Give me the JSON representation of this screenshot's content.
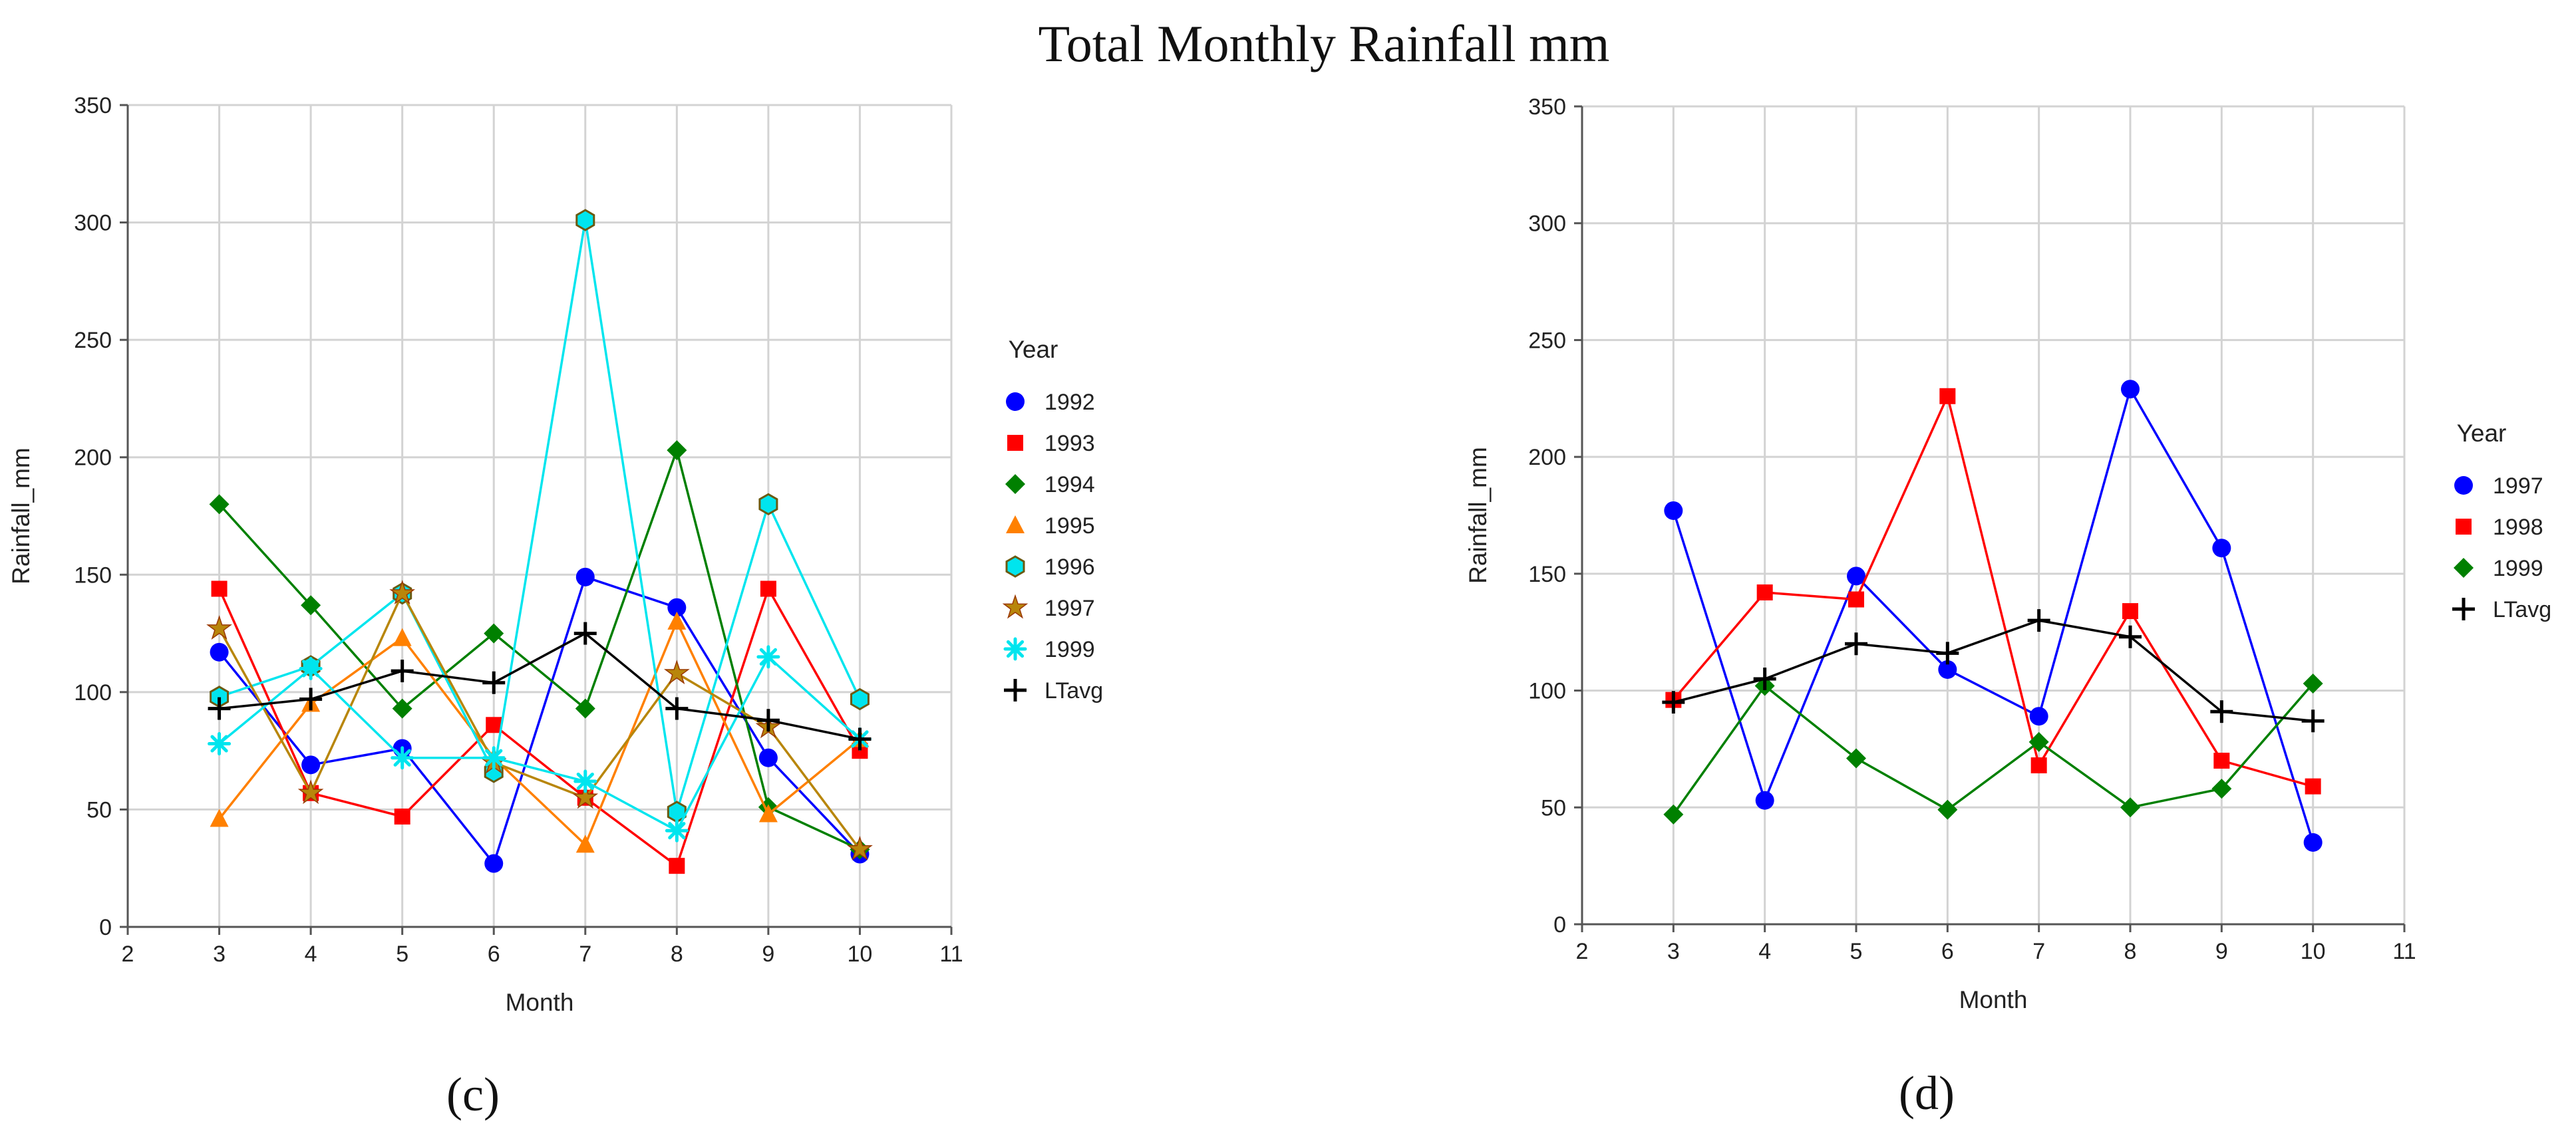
{
  "figure": {
    "title": "Total Monthly Rainfall mm"
  },
  "chart_data": [
    {
      "panel_label": "(c)",
      "type": "line",
      "xlabel": "Month",
      "ylabel": "Rainfall_mm",
      "xlim": [
        2,
        11
      ],
      "ylim": [
        0,
        350
      ],
      "xticks": [
        2,
        3,
        4,
        5,
        6,
        7,
        8,
        9,
        10,
        11
      ],
      "yticks": [
        0,
        50,
        100,
        150,
        200,
        250,
        300,
        350
      ],
      "grid": true,
      "legend": {
        "title": "Year",
        "position": "right"
      },
      "x": [
        3,
        4,
        5,
        6,
        7,
        8,
        9,
        10
      ],
      "series": [
        {
          "name": "1992",
          "color": "#0000ff",
          "marker": "circle",
          "values": [
            117,
            69,
            76,
            27,
            149,
            136,
            72,
            31
          ]
        },
        {
          "name": "1993",
          "color": "#ff0000",
          "marker": "square",
          "values": [
            144,
            57,
            47,
            86,
            55,
            26,
            144,
            75
          ]
        },
        {
          "name": "1994",
          "color": "#008000",
          "marker": "diamond",
          "values": [
            180,
            137,
            93,
            125,
            93,
            203,
            51,
            33
          ]
        },
        {
          "name": "1995",
          "color": "#ff8000",
          "marker": "triangle",
          "values": [
            46,
            95,
            123,
            72,
            35,
            130,
            48,
            80
          ]
        },
        {
          "name": "1996",
          "color": "#00e5ee",
          "marker": "hexagon",
          "values": [
            98,
            111,
            142,
            66,
            301,
            49,
            180,
            97
          ]
        },
        {
          "name": "1997",
          "color": "#b8860b",
          "marker": "star",
          "values": [
            127,
            57,
            142,
            70,
            55,
            108,
            85,
            33
          ]
        },
        {
          "name": "1999",
          "color": "#00e5ee",
          "marker": "asterisk",
          "values": [
            78,
            110,
            72,
            72,
            62,
            41,
            115,
            80
          ]
        },
        {
          "name": "LTavg",
          "color": "#000000",
          "marker": "plus",
          "values": [
            93,
            97,
            109,
            104,
            125,
            93,
            88,
            80
          ]
        }
      ]
    },
    {
      "panel_label": "(d)",
      "type": "line",
      "xlabel": "Month",
      "ylabel": "Rainfall_mm",
      "xlim": [
        2,
        11
      ],
      "ylim": [
        0,
        350
      ],
      "xticks": [
        2,
        3,
        4,
        5,
        6,
        7,
        8,
        9,
        10,
        11
      ],
      "yticks": [
        0,
        50,
        100,
        150,
        200,
        250,
        300,
        350
      ],
      "grid": true,
      "legend": {
        "title": "Year",
        "position": "right"
      },
      "x": [
        3,
        4,
        5,
        6,
        7,
        8,
        9,
        10
      ],
      "series": [
        {
          "name": "1997",
          "color": "#0000ff",
          "marker": "circle",
          "values": [
            177,
            53,
            149,
            109,
            89,
            229,
            161,
            35
          ]
        },
        {
          "name": "1998",
          "color": "#ff0000",
          "marker": "square",
          "values": [
            96,
            142,
            139,
            226,
            68,
            134,
            70,
            59
          ]
        },
        {
          "name": "1999",
          "color": "#008000",
          "marker": "diamond",
          "values": [
            47,
            102,
            71,
            49,
            78,
            50,
            58,
            103
          ]
        },
        {
          "name": "LTavg",
          "color": "#000000",
          "marker": "plus",
          "values": [
            95,
            105,
            120,
            116,
            130,
            123,
            91,
            87
          ]
        }
      ]
    }
  ]
}
